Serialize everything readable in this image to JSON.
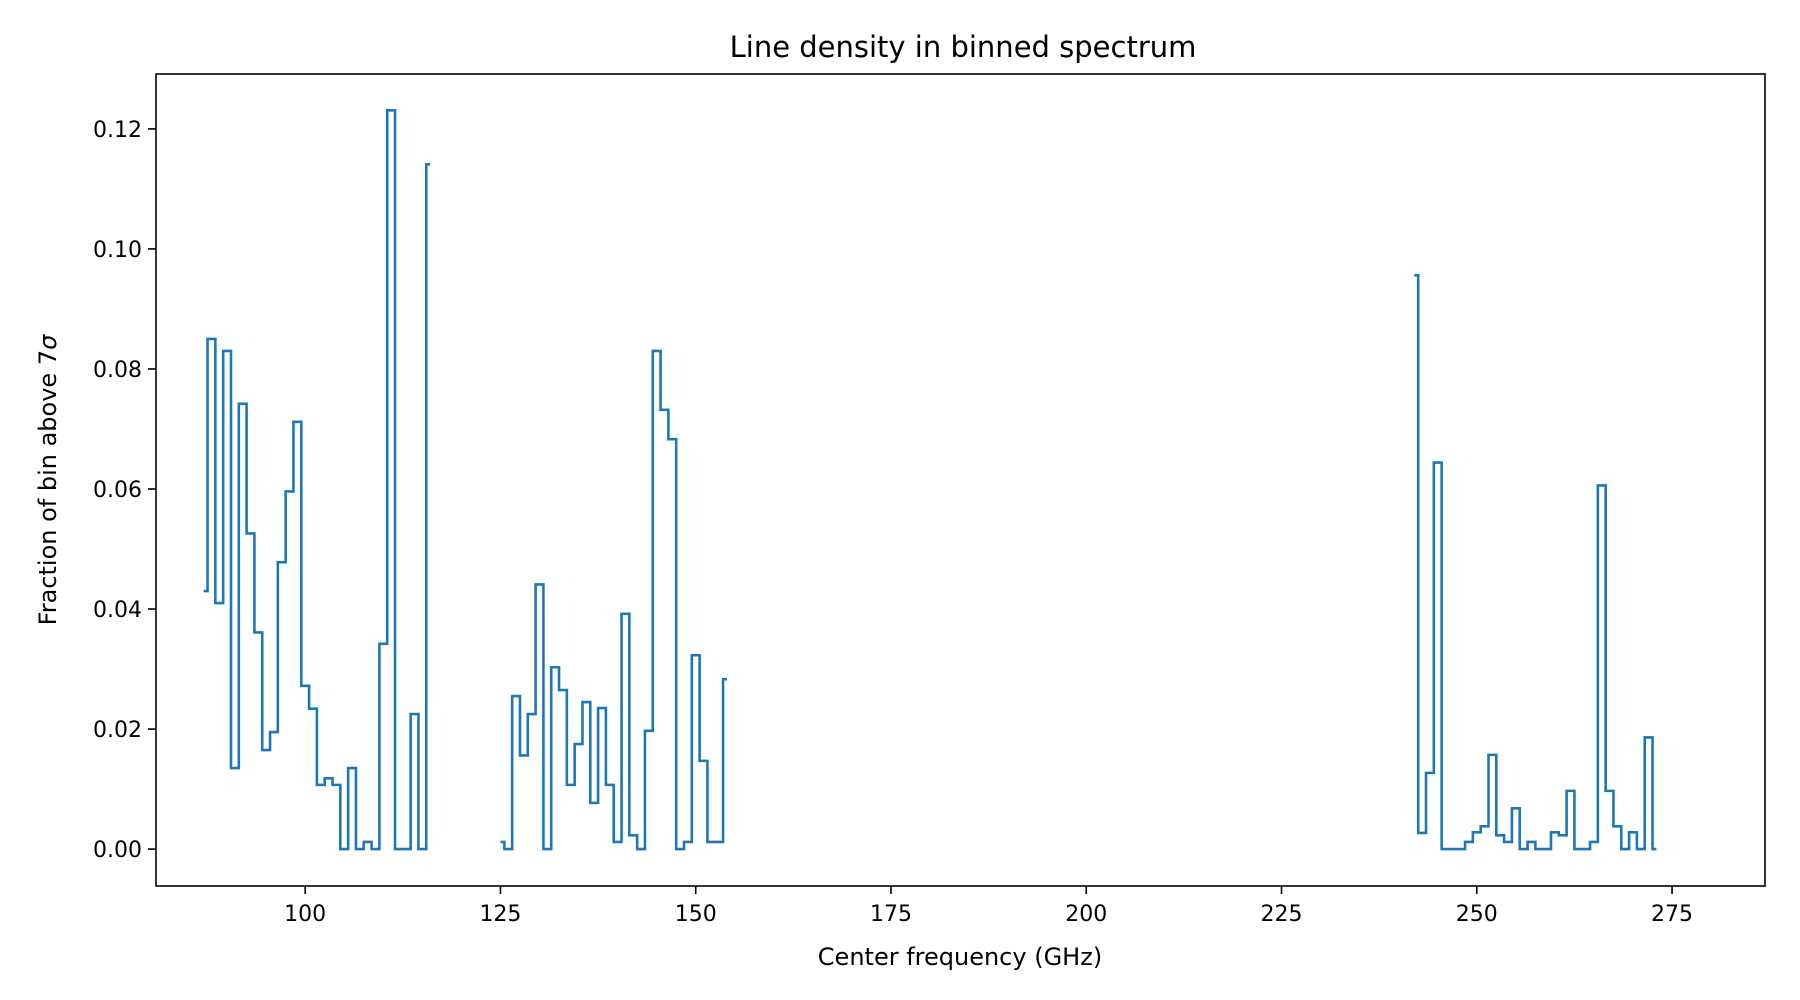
{
  "chart_data": {
    "type": "line",
    "drawstyle": "steps-mid",
    "title": "Line density in binned spectrum",
    "xlabel": "Center frequency (GHz)",
    "ylabel_prefix": "Fraction of bin above 7",
    "ylabel_symbol": "σ",
    "xlim": [
      80.9,
      286.9
    ],
    "ylim": [
      -0.00615,
      0.12915
    ],
    "xticks": [
      100,
      125,
      150,
      175,
      200,
      225,
      250,
      275
    ],
    "xtick_labels": [
      "100",
      "125",
      "150",
      "175",
      "200",
      "225",
      "250",
      "275"
    ],
    "yticks": [
      0.0,
      0.02,
      0.04,
      0.06,
      0.08,
      0.1,
      0.12
    ],
    "ytick_labels": [
      "0.00",
      "0.02",
      "0.04",
      "0.06",
      "0.08",
      "0.10",
      "0.12"
    ],
    "grid": false,
    "colors": {
      "series": "#1f77b4"
    },
    "series": [
      {
        "segments": [
          {
            "x": [
              87,
              88,
              89,
              90,
              91,
              92,
              93,
              94,
              95,
              96,
              97,
              98,
              99,
              100,
              101,
              102,
              103,
              104,
              105,
              106,
              107,
              108,
              109,
              110,
              111,
              112,
              113,
              114,
              115,
              116
            ],
            "y": [
              0.043,
              0.085,
              0.041,
              0.083,
              0.0135,
              0.0742,
              0.0526,
              0.0361,
              0.0165,
              0.0195,
              0.0478,
              0.0596,
              0.0712,
              0.0272,
              0.0234,
              0.0107,
              0.0118,
              0.0107,
              0.0,
              0.0135,
              0.0,
              0.0012,
              0.0,
              0.0342,
              0.1231,
              0.0,
              0.0,
              0.0225,
              0.0,
              0.1141
            ]
          },
          {
            "x": [
              125,
              126,
              127,
              128,
              129,
              130,
              131,
              132,
              133,
              134,
              135,
              136,
              137,
              138,
              139,
              140,
              141,
              142,
              143,
              144,
              145,
              146,
              147,
              148,
              149,
              150,
              151,
              152,
              153,
              154
            ],
            "y": [
              0.0012,
              0.0,
              0.0255,
              0.0156,
              0.0225,
              0.0441,
              0.0,
              0.0303,
              0.0265,
              0.0107,
              0.0175,
              0.0245,
              0.0077,
              0.0235,
              0.0107,
              0.0012,
              0.0392,
              0.0023,
              0.0,
              0.0197,
              0.083,
              0.0732,
              0.0683,
              0.0,
              0.0012,
              0.0323,
              0.0147,
              0.0012,
              0.0012,
              0.0283
            ]
          },
          {
            "x": [
              242,
              243,
              244,
              245,
              246,
              247,
              248,
              249,
              250,
              251,
              252,
              253,
              254,
              255,
              256,
              257,
              258,
              259,
              260,
              261,
              262,
              263,
              264,
              265,
              266,
              267,
              268,
              269,
              270,
              271,
              272,
              273
            ],
            "y": [
              0.0956,
              0.0027,
              0.0127,
              0.0644,
              0.0,
              0.0,
              0.0,
              0.0012,
              0.0028,
              0.0038,
              0.0157,
              0.0023,
              0.0012,
              0.0068,
              0.0,
              0.0012,
              0.0,
              0.0,
              0.0028,
              0.0023,
              0.0097,
              0.0,
              0.0,
              0.0012,
              0.0606,
              0.0097,
              0.0038,
              0.0,
              0.0028,
              0.0,
              0.0186,
              0.0
            ]
          }
        ]
      }
    ]
  }
}
